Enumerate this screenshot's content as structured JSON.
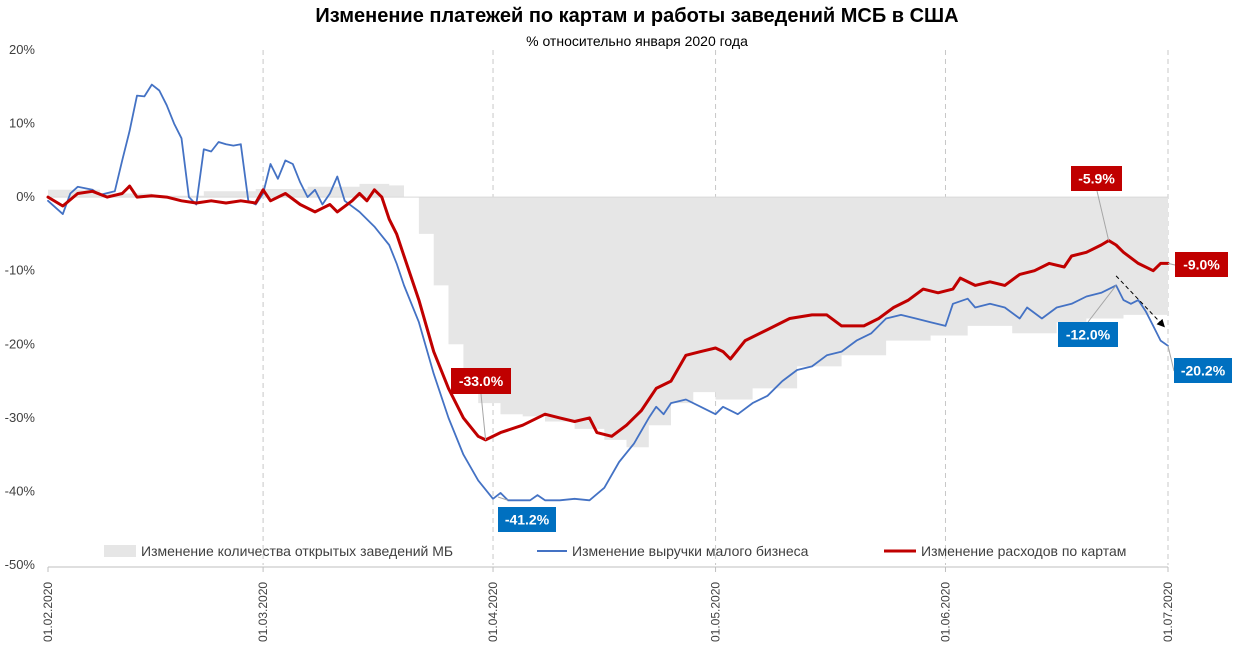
{
  "chart_data": {
    "type": "line",
    "title": "Изменение платежей по картам и работы заведений МСБ в США",
    "subtitle": "% относительно января 2020 года",
    "xlabel": "",
    "ylabel": "",
    "ylim": [
      -50,
      20
    ],
    "yticks": [
      20,
      10,
      0,
      -10,
      -20,
      -30,
      -40,
      -50
    ],
    "ytick_labels": [
      "20%",
      "10%",
      "0%",
      "-10%",
      "-20%",
      "-30%",
      "-40%",
      "-50%"
    ],
    "xlim": [
      "2020-02-01",
      "2020-07-01"
    ],
    "xticks": [
      "2020-02-01",
      "2020-03-01",
      "2020-04-01",
      "2020-05-01",
      "2020-06-01",
      "2020-07-01"
    ],
    "xtick_labels": [
      "01.02.2020",
      "01.03.2020",
      "01.04.2020",
      "01.05.2020",
      "01.06.2020",
      "01.07.2020"
    ],
    "grid": "vertical dashed at x ticks",
    "legend_position": "bottom",
    "colors": {
      "area": "#e6e6e6",
      "revenue": "#4472c4",
      "spending": "#c00000",
      "blue_label": "#0070c0",
      "red_label": "#c00000"
    },
    "series": [
      {
        "name": "Изменение количества открытых заведений МБ",
        "kind": "area",
        "color": "#e6e6e6",
        "points": [
          [
            "2020-02-01",
            1
          ],
          [
            "2020-02-08",
            0.5
          ],
          [
            "2020-02-15",
            0.2
          ],
          [
            "2020-02-22",
            0.8
          ],
          [
            "2020-02-29",
            1.1
          ],
          [
            "2020-03-07",
            1.4
          ],
          [
            "2020-03-14",
            1.8
          ],
          [
            "2020-03-18",
            1.6
          ],
          [
            "2020-03-20",
            0
          ],
          [
            "2020-03-22",
            -5
          ],
          [
            "2020-03-24",
            -12
          ],
          [
            "2020-03-26",
            -20
          ],
          [
            "2020-03-28",
            -25
          ],
          [
            "2020-03-30",
            -28
          ],
          [
            "2020-04-02",
            -29.5
          ],
          [
            "2020-04-05",
            -29.8
          ],
          [
            "2020-04-08",
            -30.5
          ],
          [
            "2020-04-12",
            -31.5
          ],
          [
            "2020-04-16",
            -33
          ],
          [
            "2020-04-19",
            -34
          ],
          [
            "2020-04-22",
            -31
          ],
          [
            "2020-04-25",
            -28
          ],
          [
            "2020-04-28",
            -26.5
          ],
          [
            "2020-05-01",
            -27.5
          ],
          [
            "2020-05-06",
            -26
          ],
          [
            "2020-05-12",
            -23
          ],
          [
            "2020-05-18",
            -21.5
          ],
          [
            "2020-05-24",
            -19.5
          ],
          [
            "2020-05-30",
            -18.8
          ],
          [
            "2020-06-04",
            -17.5
          ],
          [
            "2020-06-10",
            -18.5
          ],
          [
            "2020-06-16",
            -17
          ],
          [
            "2020-06-20",
            -16.5
          ],
          [
            "2020-06-25",
            -16
          ],
          [
            "2020-07-01",
            -16.5
          ]
        ]
      },
      {
        "name": "Изменение выручки малого бизнеса",
        "kind": "line",
        "color": "#4472c4",
        "points": [
          [
            "2020-02-01",
            -0.5
          ],
          [
            "2020-02-03",
            -2.3
          ],
          [
            "2020-02-04",
            0.5
          ],
          [
            "2020-02-05",
            1.4
          ],
          [
            "2020-02-07",
            1
          ],
          [
            "2020-02-08",
            0.3
          ],
          [
            "2020-02-10",
            0.8
          ],
          [
            "2020-02-11",
            5
          ],
          [
            "2020-02-12",
            9
          ],
          [
            "2020-02-13",
            13.8
          ],
          [
            "2020-02-14",
            13.7
          ],
          [
            "2020-02-15",
            15.3
          ],
          [
            "2020-02-16",
            14.5
          ],
          [
            "2020-02-17",
            12.5
          ],
          [
            "2020-02-18",
            10
          ],
          [
            "2020-02-19",
            8
          ],
          [
            "2020-02-20",
            0
          ],
          [
            "2020-02-21",
            -1
          ],
          [
            "2020-02-22",
            6.5
          ],
          [
            "2020-02-23",
            6.2
          ],
          [
            "2020-02-24",
            7.5
          ],
          [
            "2020-02-25",
            7.2
          ],
          [
            "2020-02-26",
            7
          ],
          [
            "2020-02-27",
            7.2
          ],
          [
            "2020-02-28",
            -0.5
          ],
          [
            "2020-02-29",
            -1
          ],
          [
            "2020-03-01",
            0.5
          ],
          [
            "2020-03-02",
            4.5
          ],
          [
            "2020-03-03",
            2.5
          ],
          [
            "2020-03-04",
            5
          ],
          [
            "2020-03-05",
            4.5
          ],
          [
            "2020-03-06",
            2
          ],
          [
            "2020-03-07",
            0
          ],
          [
            "2020-03-08",
            1
          ],
          [
            "2020-03-09",
            -1
          ],
          [
            "2020-03-10",
            0.5
          ],
          [
            "2020-03-11",
            2.8
          ],
          [
            "2020-03-12",
            -0.5
          ],
          [
            "2020-03-14",
            -2
          ],
          [
            "2020-03-16",
            -4
          ],
          [
            "2020-03-18",
            -6.5
          ],
          [
            "2020-03-19",
            -9
          ],
          [
            "2020-03-20",
            -12
          ],
          [
            "2020-03-22",
            -17
          ],
          [
            "2020-03-24",
            -24
          ],
          [
            "2020-03-26",
            -30
          ],
          [
            "2020-03-28",
            -35
          ],
          [
            "2020-03-30",
            -38.5
          ],
          [
            "2020-04-01",
            -41
          ],
          [
            "2020-04-02",
            -40.2
          ],
          [
            "2020-04-03",
            -41.2
          ],
          [
            "2020-04-05",
            -41.2
          ],
          [
            "2020-04-06",
            -41.2
          ],
          [
            "2020-04-07",
            -40.5
          ],
          [
            "2020-04-08",
            -41.2
          ],
          [
            "2020-04-10",
            -41.2
          ],
          [
            "2020-04-12",
            -41
          ],
          [
            "2020-04-14",
            -41.2
          ],
          [
            "2020-04-16",
            -39.5
          ],
          [
            "2020-04-18",
            -36
          ],
          [
            "2020-04-20",
            -33.5
          ],
          [
            "2020-04-22",
            -30
          ],
          [
            "2020-04-23",
            -28.5
          ],
          [
            "2020-04-24",
            -29.5
          ],
          [
            "2020-04-25",
            -28
          ],
          [
            "2020-04-27",
            -27.5
          ],
          [
            "2020-04-29",
            -28.5
          ],
          [
            "2020-05-01",
            -29.5
          ],
          [
            "2020-05-02",
            -28.5
          ],
          [
            "2020-05-04",
            -29.5
          ],
          [
            "2020-05-06",
            -28
          ],
          [
            "2020-05-08",
            -27
          ],
          [
            "2020-05-10",
            -25
          ],
          [
            "2020-05-12",
            -23.5
          ],
          [
            "2020-05-14",
            -23
          ],
          [
            "2020-05-16",
            -21.5
          ],
          [
            "2020-05-18",
            -21
          ],
          [
            "2020-05-20",
            -19.5
          ],
          [
            "2020-05-22",
            -18.5
          ],
          [
            "2020-05-24",
            -16.5
          ],
          [
            "2020-05-26",
            -16
          ],
          [
            "2020-05-28",
            -16.5
          ],
          [
            "2020-05-30",
            -17
          ],
          [
            "2020-06-01",
            -17.5
          ],
          [
            "2020-06-02",
            -14.5
          ],
          [
            "2020-06-04",
            -13.8
          ],
          [
            "2020-06-05",
            -15
          ],
          [
            "2020-06-07",
            -14.5
          ],
          [
            "2020-06-09",
            -15
          ],
          [
            "2020-06-11",
            -16.5
          ],
          [
            "2020-06-12",
            -15
          ],
          [
            "2020-06-14",
            -16.5
          ],
          [
            "2020-06-16",
            -15
          ],
          [
            "2020-06-18",
            -14.5
          ],
          [
            "2020-06-20",
            -13.5
          ],
          [
            "2020-06-22",
            -13
          ],
          [
            "2020-06-24",
            -12
          ],
          [
            "2020-06-25",
            -14
          ],
          [
            "2020-06-26",
            -14.5
          ],
          [
            "2020-06-27",
            -14
          ],
          [
            "2020-06-28",
            -15.5
          ],
          [
            "2020-06-29",
            -17.5
          ],
          [
            "2020-06-30",
            -19.5
          ],
          [
            "2020-07-01",
            -20.2
          ]
        ]
      },
      {
        "name": "Изменение расходов по картам",
        "kind": "line",
        "color": "#c00000",
        "points": [
          [
            "2020-02-01",
            0
          ],
          [
            "2020-02-03",
            -1.2
          ],
          [
            "2020-02-05",
            0.5
          ],
          [
            "2020-02-07",
            0.8
          ],
          [
            "2020-02-09",
            0
          ],
          [
            "2020-02-11",
            0.5
          ],
          [
            "2020-02-12",
            1.5
          ],
          [
            "2020-02-13",
            0
          ],
          [
            "2020-02-15",
            0.2
          ],
          [
            "2020-02-17",
            0
          ],
          [
            "2020-02-19",
            -0.5
          ],
          [
            "2020-02-21",
            -0.8
          ],
          [
            "2020-02-23",
            -0.5
          ],
          [
            "2020-02-25",
            -0.8
          ],
          [
            "2020-02-27",
            -0.5
          ],
          [
            "2020-02-29",
            -0.8
          ],
          [
            "2020-03-01",
            1
          ],
          [
            "2020-03-02",
            -0.5
          ],
          [
            "2020-03-04",
            0.5
          ],
          [
            "2020-03-06",
            -1
          ],
          [
            "2020-03-08",
            -2
          ],
          [
            "2020-03-09",
            -1.5
          ],
          [
            "2020-03-10",
            -1
          ],
          [
            "2020-03-11",
            -2
          ],
          [
            "2020-03-13",
            -0.5
          ],
          [
            "2020-03-14",
            0.5
          ],
          [
            "2020-03-15",
            -0.5
          ],
          [
            "2020-03-16",
            1
          ],
          [
            "2020-03-17",
            0
          ],
          [
            "2020-03-18",
            -3
          ],
          [
            "2020-03-19",
            -5
          ],
          [
            "2020-03-20",
            -8
          ],
          [
            "2020-03-22",
            -14
          ],
          [
            "2020-03-24",
            -21
          ],
          [
            "2020-03-26",
            -26
          ],
          [
            "2020-03-28",
            -30
          ],
          [
            "2020-03-30",
            -32.5
          ],
          [
            "2020-03-31",
            -33
          ],
          [
            "2020-04-02",
            -32
          ],
          [
            "2020-04-05",
            -31
          ],
          [
            "2020-04-08",
            -29.5
          ],
          [
            "2020-04-10",
            -30
          ],
          [
            "2020-04-12",
            -30.5
          ],
          [
            "2020-04-14",
            -30
          ],
          [
            "2020-04-15",
            -32
          ],
          [
            "2020-04-17",
            -32.5
          ],
          [
            "2020-04-19",
            -31
          ],
          [
            "2020-04-21",
            -29
          ],
          [
            "2020-04-23",
            -26
          ],
          [
            "2020-04-25",
            -25
          ],
          [
            "2020-04-27",
            -21.5
          ],
          [
            "2020-04-29",
            -21
          ],
          [
            "2020-05-01",
            -20.5
          ],
          [
            "2020-05-02",
            -21
          ],
          [
            "2020-05-03",
            -22
          ],
          [
            "2020-05-05",
            -19.5
          ],
          [
            "2020-05-08",
            -18
          ],
          [
            "2020-05-11",
            -16.5
          ],
          [
            "2020-05-14",
            -16
          ],
          [
            "2020-05-16",
            -16
          ],
          [
            "2020-05-18",
            -17.5
          ],
          [
            "2020-05-21",
            -17.5
          ],
          [
            "2020-05-23",
            -16.5
          ],
          [
            "2020-05-25",
            -15
          ],
          [
            "2020-05-27",
            -14
          ],
          [
            "2020-05-29",
            -12.5
          ],
          [
            "2020-05-31",
            -13
          ],
          [
            "2020-06-02",
            -12.5
          ],
          [
            "2020-06-03",
            -11
          ],
          [
            "2020-06-05",
            -12
          ],
          [
            "2020-06-07",
            -11.5
          ],
          [
            "2020-06-09",
            -12
          ],
          [
            "2020-06-11",
            -10.5
          ],
          [
            "2020-06-13",
            -10
          ],
          [
            "2020-06-15",
            -9
          ],
          [
            "2020-06-17",
            -9.5
          ],
          [
            "2020-06-18",
            -8
          ],
          [
            "2020-06-20",
            -7.5
          ],
          [
            "2020-06-22",
            -6.5
          ],
          [
            "2020-06-23",
            -5.9
          ],
          [
            "2020-06-24",
            -6.5
          ],
          [
            "2020-06-25",
            -7.5
          ],
          [
            "2020-06-27",
            -9
          ],
          [
            "2020-06-29",
            -10
          ],
          [
            "2020-06-30",
            -9
          ],
          [
            "2020-07-01",
            -9
          ]
        ]
      }
    ],
    "annotations": [
      {
        "text": "-33.0%",
        "x": "2020-03-31",
        "y": -33.0,
        "style": "red"
      },
      {
        "text": "-41.2%",
        "x": "2020-04-03",
        "y": -41.2,
        "style": "blue"
      },
      {
        "text": "-5.9%",
        "x": "2020-06-23",
        "y": -5.9,
        "style": "red"
      },
      {
        "text": "-12.0%",
        "x": "2020-06-24",
        "y": -12.0,
        "style": "blue"
      },
      {
        "text": "-9.0%",
        "x": "2020-07-01",
        "y": -9.0,
        "style": "red"
      },
      {
        "text": "-20.2%",
        "x": "2020-07-01",
        "y": -20.2,
        "style": "blue"
      }
    ]
  }
}
